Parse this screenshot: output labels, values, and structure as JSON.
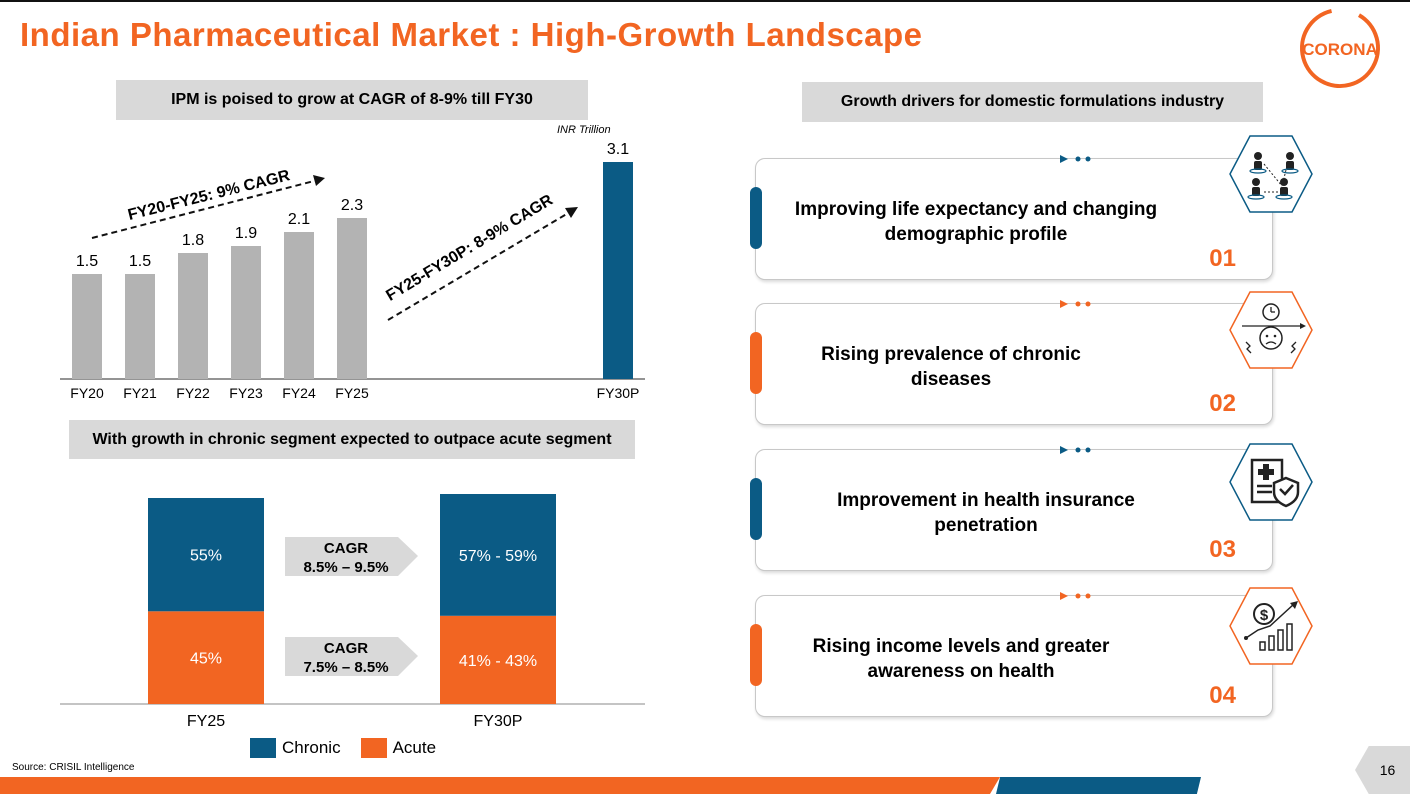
{
  "title": "Indian Pharmaceutical Market : High-Growth Landscape",
  "logo_text": "CORONA",
  "colors": {
    "orange": "#f26522",
    "blue": "#0b5b85",
    "gray_bar": "#b3b3b3",
    "head_gray": "#d9d9d9"
  },
  "left_top_header": "IPM is poised to grow at CAGR of 8-9% till FY30",
  "unit_label": "INR Trillion",
  "chart_data": [
    {
      "type": "bar",
      "title": "IPM is poised to grow at CAGR of 8-9% till FY30",
      "ylabel": "INR Trillion",
      "categories": [
        "FY20",
        "FY21",
        "FY22",
        "FY23",
        "FY24",
        "FY25",
        "FY30P"
      ],
      "values": [
        1.5,
        1.5,
        1.8,
        1.9,
        2.1,
        2.3,
        3.1
      ],
      "value_labels": [
        "1.5",
        "1.5",
        "1.8",
        "1.9",
        "2.1",
        "2.3",
        "3.1"
      ],
      "ylim": [
        0,
        3.1
      ],
      "annotations": [
        "FY20-FY25: 9% CAGR",
        "FY25-FY30P: 8-9% CAGR"
      ]
    },
    {
      "type": "bar",
      "stacked": true,
      "title": "With growth in chronic segment expected to outpace acute segment",
      "categories": [
        "FY25",
        "FY30P"
      ],
      "series": [
        {
          "name": "Chronic",
          "values": [
            55,
            58
          ],
          "labels": [
            "55%",
            "57% - 59%"
          ]
        },
        {
          "name": "Acute",
          "values": [
            45,
            42
          ],
          "labels": [
            "45%",
            "41% - 43%"
          ]
        }
      ],
      "ylim": [
        0,
        100
      ],
      "annotations": [
        {
          "title": "CAGR",
          "value": "8.5% – 9.5%"
        },
        {
          "title": "CAGR",
          "value": "7.5% – 8.5%"
        }
      ]
    }
  ],
  "left_bottom_header": "With growth in chronic segment expected to outpace acute segment",
  "legend": {
    "chronic": "Chronic",
    "acute": "Acute"
  },
  "source": "Source: CRISIL Intelligence",
  "right_header": "Growth drivers for domestic formulations industry",
  "drivers": [
    {
      "text": "Improving life expectancy and changing demographic profile",
      "number": "01",
      "icon": "people-network-icon"
    },
    {
      "text": "Rising prevalence of chronic diseases",
      "number": "02",
      "icon": "stressed-person-clock-icon"
    },
    {
      "text": "Improvement in health insurance penetration",
      "number": "03",
      "icon": "insurance-document-shield-icon"
    },
    {
      "text": "Rising income levels and greater awareness on health",
      "number": "04",
      "icon": "dollar-growth-chart-icon"
    }
  ],
  "page_number": "16"
}
